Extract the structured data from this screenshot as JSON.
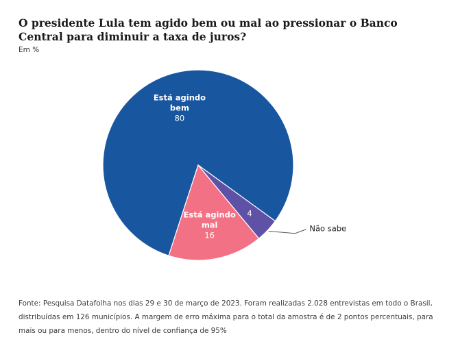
{
  "title": "O presidente Lula tem agido bem ou mal ao pressionar o Banco Central para diminuir a taxa de juros?",
  "subtitle": "Em %",
  "source": "Fonte: Pesquisa Datafolha nos dias 29 e 30 de março de 2023. Foram realizadas 2.028 entrevistas em todo o Brasil, distribuídas em 126 municípios. A margem de erro máxima para o total da amostra é de 2 pontos percentuais, para mais ou para menos, dentro do nível de confiança de 95%",
  "chart_data": {
    "type": "pie",
    "unit": "%",
    "slices": [
      {
        "label_lines": [
          "Está agindo",
          "bem"
        ],
        "value": 80,
        "value_label": "80",
        "color": "#1857a0"
      },
      {
        "label_lines": [
          "Está agindo",
          "mal"
        ],
        "value": 16,
        "value_label": "16",
        "color": "#f27185"
      },
      {
        "label_lines": [
          "Não sabe"
        ],
        "value": 4,
        "value_label": "4",
        "color": "#5e51a6"
      }
    ]
  }
}
